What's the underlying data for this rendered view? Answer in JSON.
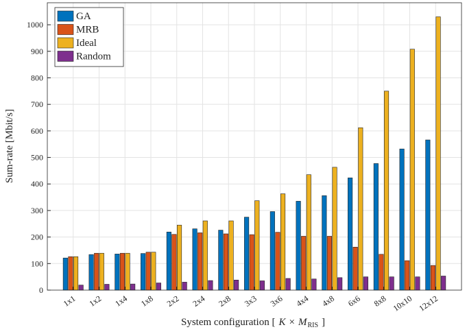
{
  "chart_data": {
    "type": "bar",
    "ylabel": "Sum-rate [Mbit/s]",
    "xlabel": [
      "System configuration [",
      "K",
      "×",
      "M",
      "RIS",
      "]"
    ],
    "categories": [
      "1x1",
      "1x2",
      "1x4",
      "1x8",
      "2x2",
      "2x4",
      "2x8",
      "3x3",
      "3x6",
      "4x4",
      "4x8",
      "6x6",
      "8x8",
      "10x10",
      "12x12"
    ],
    "series": [
      {
        "name": "GA",
        "color": "#0072bd",
        "values": [
          121,
          134,
          136,
          138,
          219,
          231,
          226,
          275,
          296,
          335,
          356,
          423,
          477,
          532,
          566
        ]
      },
      {
        "name": "MRB",
        "color": "#d95319",
        "values": [
          126,
          139,
          139,
          143,
          210,
          216,
          212,
          209,
          218,
          203,
          203,
          162,
          135,
          111,
          93
        ]
      },
      {
        "name": "Ideal",
        "color": "#edb120",
        "values": [
          126,
          139,
          139,
          143,
          245,
          261,
          261,
          337,
          363,
          435,
          463,
          612,
          750,
          908,
          1030
        ]
      },
      {
        "name": "Random",
        "color": "#7e2f8e",
        "values": [
          19,
          22,
          23,
          27,
          30,
          36,
          38,
          35,
          44,
          42,
          47,
          50,
          50,
          50,
          53
        ]
      }
    ],
    "ylim": [
      0,
      1083
    ],
    "yticks": [
      0,
      100,
      200,
      300,
      400,
      500,
      600,
      700,
      800,
      900,
      1000
    ],
    "grid": true,
    "legend": "top-left"
  }
}
